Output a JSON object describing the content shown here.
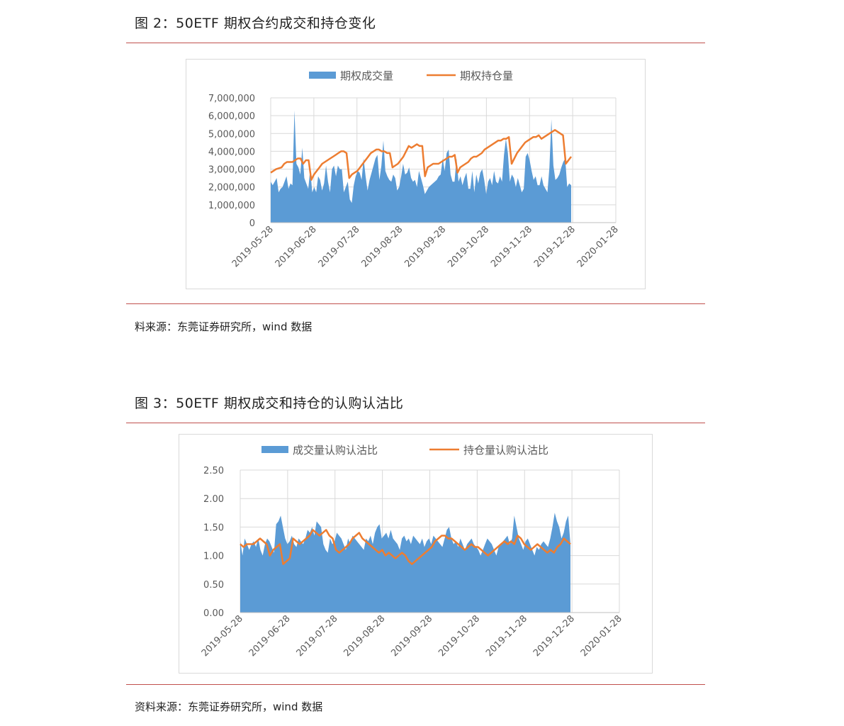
{
  "figure2": {
    "title": "图 2：50ETF 期权合约成交和持仓变化",
    "source": "料来源：东莞证券研究所，wind 数据"
  },
  "figure3": {
    "title": "图 3：50ETF 期权成交和持仓的认购认沽比",
    "source": "资料来源：东莞证券研究所，wind 数据"
  },
  "colors": {
    "area": "#5b9bd5",
    "line": "#ed7d31",
    "rule": "#c0504d",
    "grid": "#d9d9d9"
  },
  "chart_data": [
    {
      "type": "area",
      "x_ticks": [
        "2019-05-28",
        "2019-06-28",
        "2019-07-28",
        "2019-08-28",
        "2019-09-28",
        "2019-10-28",
        "2019-11-28",
        "2019-12-28",
        "2020-01-28"
      ],
      "y_ticks": [
        "7,000,000",
        "6,000,000",
        "5,000,000",
        "4,000,000",
        "3,000,000",
        "2,000,000",
        "1,000,000",
        "0"
      ],
      "ylim": [
        0,
        7000000
      ],
      "grid": true,
      "legend": "top",
      "series": [
        {
          "name": "期权成交量",
          "kind": "area",
          "values": [
            2300000,
            2100000,
            2300000,
            2500000,
            1700000,
            1900000,
            2000000,
            2300000,
            2600000,
            1900000,
            2200000,
            2100000,
            6300000,
            3300000,
            3100000,
            2700000,
            4200000,
            2500000,
            2200000,
            1900000,
            3000000,
            1700000,
            2000000,
            1700000,
            2600000,
            2400000,
            1800000,
            2200000,
            3200000,
            2300000,
            1700000,
            3000000,
            3200000,
            2600000,
            3200000,
            3000000,
            3000000,
            1700000,
            2000000,
            2300000,
            1300000,
            1100000,
            2100000,
            2600000,
            2900000,
            2800000,
            2400000,
            3600000,
            2600000,
            1800000,
            2400000,
            2800000,
            3200000,
            3600000,
            3800000,
            2400000,
            3200000,
            4600000,
            2900000,
            2600000,
            2400000,
            2300000,
            2700000,
            2500000,
            1800000,
            2000000,
            2600000,
            3300000,
            2700000,
            2800000,
            3100000,
            2500000,
            2300000,
            2400000,
            2000000,
            2900000,
            2500000,
            2100000,
            1600000,
            1800000,
            2000000,
            2100000,
            2200000,
            2300000,
            2400000,
            2600000,
            2700000,
            3600000,
            2900000,
            3900000,
            4100000,
            2700000,
            2300000,
            2300000,
            3600000,
            2300000,
            2600000,
            2100000,
            2500000,
            2800000,
            1900000,
            1900000,
            2900000,
            1700000,
            2700000,
            2200000,
            2800000,
            3000000,
            2400000,
            1600000,
            2300000,
            2500000,
            2100000,
            2900000,
            2300000,
            2200000,
            2600000,
            2300000,
            3800000,
            4700000,
            3900000,
            2300000,
            2700000,
            2500000,
            2000000,
            2500000,
            2100000,
            1700000,
            1900000,
            3700000,
            3900000,
            3500000,
            2900000,
            2400000,
            2600000,
            2100000,
            2100000,
            2600000,
            2100000,
            1900000,
            1700000,
            3100000,
            5800000,
            3200000,
            2400000,
            2500000,
            2700000,
            3100000,
            3400000,
            3600000,
            2000000,
            2200000,
            2100000
          ],
          "_comment": "148 trading-day samples read off the area chart"
        },
        {
          "name": "期权持仓量",
          "kind": "line",
          "values": [
            2800000,
            2900000,
            3000000,
            3050000,
            3100000,
            3300000,
            3400000,
            3400000,
            3400000,
            3500000,
            3600000,
            3600000,
            3300000,
            3500000,
            3500000,
            2400000,
            2700000,
            2900000,
            3100000,
            3300000,
            3400000,
            3500000,
            3600000,
            3700000,
            3800000,
            3900000,
            4000000,
            4000000,
            3900000,
            2500000,
            2700000,
            2800000,
            2900000,
            3100000,
            3300000,
            3500000,
            3700000,
            3900000,
            4000000,
            4100000,
            4100000,
            4000000,
            4000000,
            3900000,
            3900000,
            3100000,
            3200000,
            3300000,
            3500000,
            3700000,
            4000000,
            4300000,
            4200000,
            4300000,
            4400000,
            4300000,
            4300000,
            2600000,
            3100000,
            3200000,
            3300000,
            3300000,
            3300000,
            3400000,
            3500000,
            3600000,
            3700000,
            3700000,
            3800000,
            2800000,
            3100000,
            3200000,
            3300000,
            3400000,
            3600000,
            3700000,
            3700000,
            3800000,
            3900000,
            4100000,
            4200000,
            4300000,
            4400000,
            4500000,
            4600000,
            4600000,
            4700000,
            4700000,
            4800000,
            3300000,
            3600000,
            3900000,
            4100000,
            4300000,
            4500000,
            4600000,
            4700000,
            4800000,
            4800000,
            4900000,
            4700000,
            4800000,
            4900000,
            5000000,
            5100000,
            5200000,
            5100000,
            5000000,
            4900000,
            3300000,
            3500000,
            3700000
          ],
          "_comment": "sampled points along the orange line"
        }
      ]
    },
    {
      "type": "area",
      "x_ticks": [
        "2019-05-28",
        "2019-06-28",
        "2019-07-28",
        "2019-08-28",
        "2019-09-28",
        "2019-10-28",
        "2019-11-28",
        "2019-12-28",
        "2020-01-28"
      ],
      "y_ticks": [
        "2.50",
        "2.00",
        "1.50",
        "1.00",
        "0.50",
        "0.00"
      ],
      "ylim": [
        0,
        2.5
      ],
      "grid": true,
      "legend": "top",
      "series": [
        {
          "name": "成交量认购认沽比",
          "kind": "area",
          "values": [
            1.25,
            1.0,
            1.3,
            1.2,
            1.1,
            1.2,
            1.25,
            1.15,
            1.3,
            1.1,
            1.0,
            1.2,
            1.3,
            1.25,
            1.15,
            1.05,
            1.55,
            1.6,
            1.7,
            1.5,
            1.3,
            1.2,
            1.25,
            1.35,
            1.2,
            1.15,
            1.3,
            1.25,
            1.2,
            1.3,
            1.45,
            1.4,
            1.5,
            1.35,
            1.6,
            1.55,
            1.5,
            1.2,
            1.1,
            1.05,
            1.3,
            1.2,
            1.25,
            1.4,
            1.35,
            1.3,
            1.2,
            1.1,
            1.3,
            1.2,
            1.35,
            1.3,
            1.25,
            1.2,
            1.15,
            1.1,
            1.3,
            1.25,
            1.35,
            1.2,
            1.4,
            1.5,
            1.55,
            1.3,
            1.35,
            1.4,
            1.3,
            1.45,
            1.3,
            1.25,
            1.2,
            1.1,
            1.3,
            1.35,
            1.25,
            1.3,
            1.2,
            1.35,
            1.3,
            1.25,
            1.2,
            1.3,
            1.15,
            1.25,
            1.3,
            1.2,
            1.35,
            1.3,
            1.25,
            1.2,
            1.15,
            1.3,
            1.45,
            1.5,
            1.3,
            1.2,
            1.25,
            1.15,
            1.3,
            1.2,
            1.1,
            1.2,
            1.25,
            1.3,
            1.2,
            1.15,
            1.1,
            1.0,
            1.1,
            1.2,
            1.3,
            1.25,
            1.2,
            1.1,
            1.0,
            1.15,
            1.2,
            1.25,
            1.3,
            1.35,
            1.2,
            1.3,
            1.7,
            1.5,
            1.3,
            1.2,
            1.1,
            1.25,
            1.3,
            1.2,
            1.1,
            1.0,
            1.15,
            1.1,
            1.2,
            1.25,
            1.2,
            1.15,
            1.3,
            1.5,
            1.75,
            1.6,
            1.5,
            1.3,
            1.4,
            1.6,
            1.7,
            1.2
          ],
          "_comment": "samples of the blue area"
        },
        {
          "name": "持仓量认购认沽比",
          "kind": "line",
          "values": [
            1.2,
            1.15,
            1.2,
            1.2,
            1.2,
            1.25,
            1.3,
            1.25,
            1.2,
            1.0,
            1.1,
            1.15,
            1.2,
            0.85,
            0.9,
            0.95,
            1.3,
            1.25,
            1.2,
            1.25,
            1.3,
            1.35,
            1.45,
            1.4,
            1.35,
            1.4,
            1.45,
            1.35,
            1.3,
            1.1,
            1.05,
            1.1,
            1.15,
            1.2,
            1.3,
            1.35,
            1.4,
            1.3,
            1.25,
            1.2,
            1.15,
            1.1,
            1.05,
            1.1,
            1.0,
            1.05,
            1.0,
            0.95,
            1.0,
            1.05,
            1.0,
            0.9,
            0.85,
            0.9,
            0.95,
            1.0,
            1.05,
            1.1,
            1.15,
            1.25,
            1.3,
            1.35,
            1.35,
            1.3,
            1.3,
            1.25,
            1.2,
            1.15,
            1.1,
            1.15,
            1.2,
            1.15,
            1.15,
            1.1,
            1.05,
            1.0,
            1.05,
            1.1,
            1.15,
            1.2,
            1.25,
            1.2,
            1.25,
            1.2,
            1.35,
            1.3,
            1.2,
            1.15,
            1.1,
            1.15,
            1.2,
            1.15,
            1.1,
            1.05,
            1.1,
            1.05,
            1.15,
            1.2,
            1.3,
            1.25,
            1.2
          ],
          "_comment": "samples along the orange line"
        }
      ]
    }
  ]
}
